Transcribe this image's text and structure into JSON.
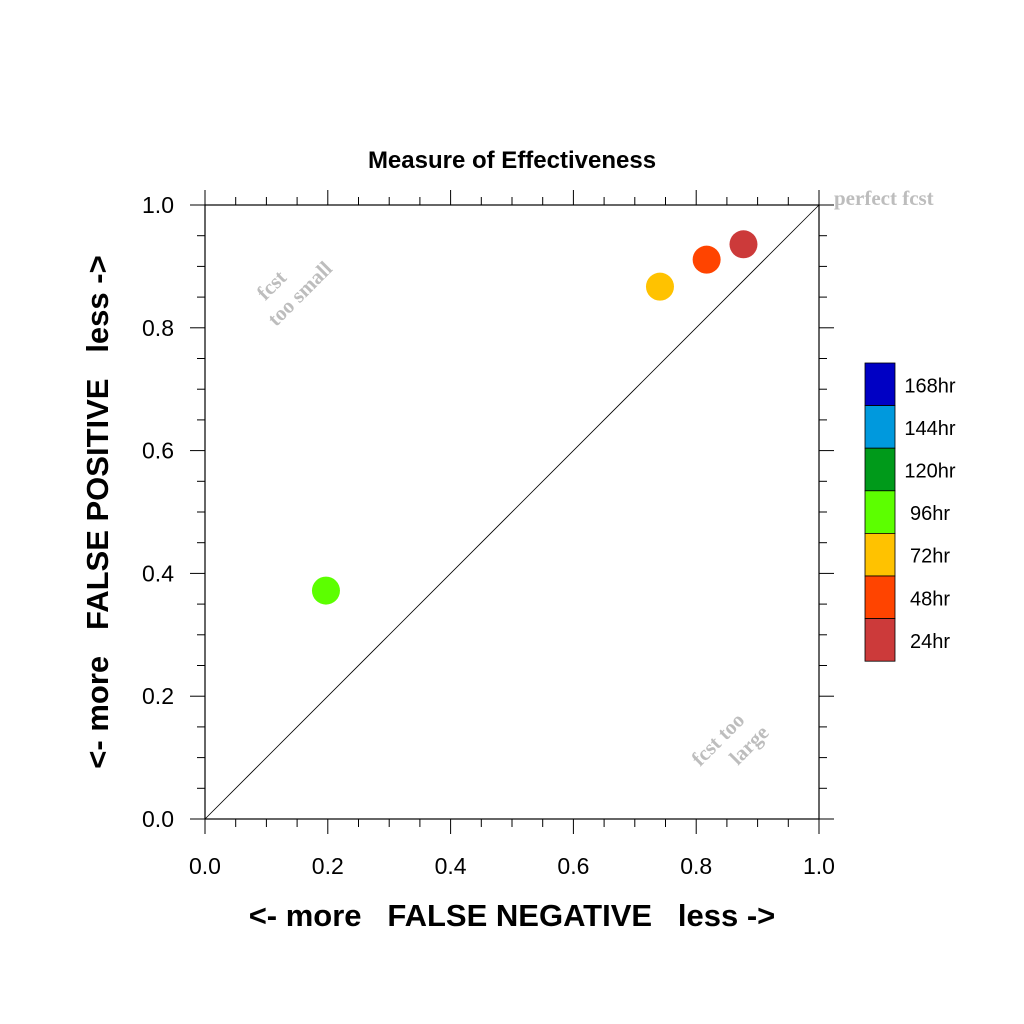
{
  "chart_data": {
    "type": "scatter",
    "title": "Measure of Effectiveness",
    "xlabel": "<- more   FALSE NEGATIVE   less ->",
    "ylabel": "<- more   FALSE POSITIVE   less ->",
    "xlim": [
      0.0,
      1.0
    ],
    "ylim": [
      0.0,
      1.0
    ],
    "xticks": [
      "0.0",
      "0.2",
      "0.4",
      "0.6",
      "0.8",
      "1.0"
    ],
    "yticks": [
      "0.0",
      "0.2",
      "0.4",
      "0.6",
      "0.8",
      "1.0"
    ],
    "grid": false,
    "reference_line": {
      "x": [
        0.0,
        1.0
      ],
      "y": [
        0.0,
        1.0
      ]
    },
    "annotations": [
      {
        "text": "perfect fcst",
        "x": 1.0,
        "y": 1.0
      },
      {
        "lines": [
          "fcst",
          "too small"
        ],
        "x": 0.13,
        "y": 0.88
      },
      {
        "lines": [
          "fcst too",
          "large"
        ],
        "x": 0.85,
        "y": 0.13
      }
    ],
    "series": [
      {
        "name": "24hr",
        "color": "#cc3a3a",
        "x": [
          0.877
        ],
        "y": [
          0.936
        ]
      },
      {
        "name": "48hr",
        "color": "#ff4400",
        "x": [
          0.817
        ],
        "y": [
          0.911
        ]
      },
      {
        "name": "72hr",
        "color": "#ffc200",
        "x": [
          0.741
        ],
        "y": [
          0.867
        ]
      },
      {
        "name": "96hr",
        "color": "#5cff00",
        "x": [
          0.197
        ],
        "y": [
          0.372
        ]
      }
    ],
    "legend": {
      "placement": "right",
      "entries": [
        {
          "label": "168hr",
          "color": "#0000c4"
        },
        {
          "label": "144hr",
          "color": "#0099dd"
        },
        {
          "label": "120hr",
          "color": "#009a1a"
        },
        {
          "label": "96hr",
          "color": "#5cff00"
        },
        {
          "label": "72hr",
          "color": "#ffc200"
        },
        {
          "label": "48hr",
          "color": "#ff4400"
        },
        {
          "label": "24hr",
          "color": "#cc3a3a"
        }
      ]
    }
  }
}
